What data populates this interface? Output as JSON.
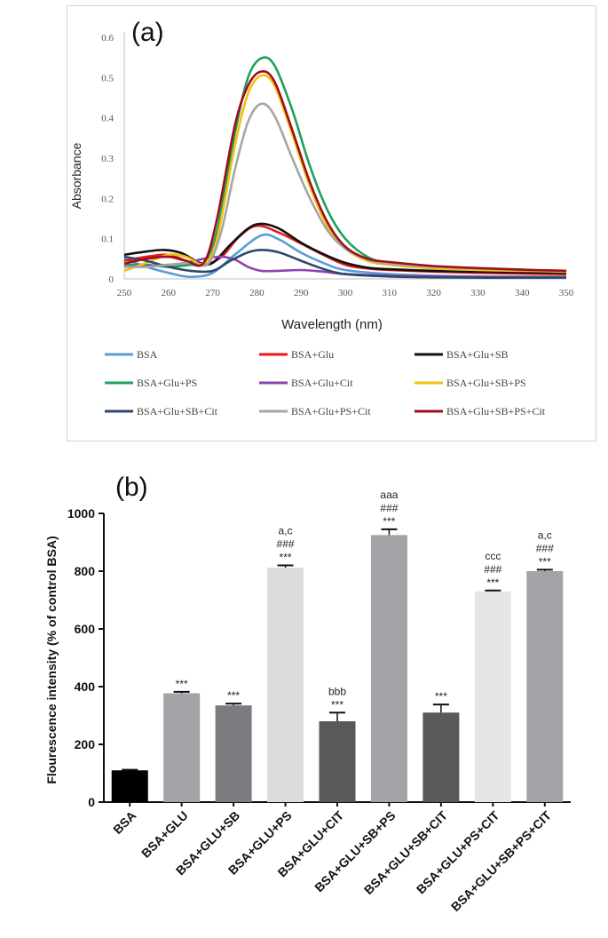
{
  "chart_data": [
    {
      "type": "line",
      "panel_label": "(a)",
      "xlabel": "Wavelength (nm)",
      "ylabel": "Absorbance",
      "xlim": [
        250,
        350
      ],
      "ylim": [
        0,
        0.6
      ],
      "x_ticks": [
        "250",
        "260",
        "270",
        "280",
        "290",
        "300",
        "310",
        "320",
        "330",
        "340",
        "350"
      ],
      "y_ticks": [
        "0",
        "0.1",
        "0.2",
        "0.3",
        "0.4",
        "0.5",
        "0.6"
      ],
      "legend_placement": "bottom",
      "series": [
        {
          "name": "BSA",
          "color": "#5b9bd5",
          "points": [
            [
              250,
              0.05
            ],
            [
              255,
              0.03
            ],
            [
              260,
              0.015
            ],
            [
              265,
              0.005
            ],
            [
              270,
              0.015
            ],
            [
              275,
              0.06
            ],
            [
              281,
              0.108
            ],
            [
              285,
              0.098
            ],
            [
              290,
              0.065
            ],
            [
              295,
              0.04
            ],
            [
              300,
              0.022
            ],
            [
              310,
              0.012
            ],
            [
              320,
              0.008
            ],
            [
              330,
              0.006
            ],
            [
              340,
              0.005
            ],
            [
              350,
              0.005
            ]
          ]
        },
        {
          "name": "BSA+Glu",
          "color": "#e31a1c",
          "points": [
            [
              250,
              0.045
            ],
            [
              255,
              0.055
            ],
            [
              260,
              0.06
            ],
            [
              264,
              0.045
            ],
            [
              268,
              0.035
            ],
            [
              272,
              0.055
            ],
            [
              276,
              0.105
            ],
            [
              280,
              0.132
            ],
            [
              285,
              0.115
            ],
            [
              290,
              0.088
            ],
            [
              295,
              0.06
            ],
            [
              300,
              0.035
            ],
            [
              305,
              0.026
            ],
            [
              310,
              0.022
            ],
            [
              320,
              0.018
            ],
            [
              330,
              0.015
            ],
            [
              340,
              0.013
            ],
            [
              350,
              0.012
            ]
          ]
        },
        {
          "name": "BSA+Glu+SB",
          "color": "#111111",
          "points": [
            [
              250,
              0.06
            ],
            [
              255,
              0.068
            ],
            [
              259,
              0.072
            ],
            [
              263,
              0.064
            ],
            [
              267,
              0.04
            ],
            [
              270,
              0.04
            ],
            [
              274,
              0.085
            ],
            [
              278,
              0.125
            ],
            [
              281,
              0.137
            ],
            [
              285,
              0.125
            ],
            [
              290,
              0.09
            ],
            [
              295,
              0.062
            ],
            [
              300,
              0.04
            ],
            [
              305,
              0.028
            ],
            [
              310,
              0.024
            ],
            [
              320,
              0.02
            ],
            [
              330,
              0.018
            ],
            [
              340,
              0.016
            ],
            [
              350,
              0.015
            ]
          ]
        },
        {
          "name": "BSA+Glu+PS",
          "color": "#1fa05a",
          "points": [
            [
              250,
              0.035
            ],
            [
              255,
              0.035
            ],
            [
              260,
              0.03
            ],
            [
              265,
              0.035
            ],
            [
              268,
              0.04
            ],
            [
              271,
              0.12
            ],
            [
              275,
              0.36
            ],
            [
              278,
              0.5
            ],
            [
              281,
              0.548
            ],
            [
              284,
              0.53
            ],
            [
              288,
              0.42
            ],
            [
              292,
              0.28
            ],
            [
              296,
              0.17
            ],
            [
              300,
              0.1
            ],
            [
              305,
              0.055
            ],
            [
              310,
              0.04
            ],
            [
              320,
              0.03
            ],
            [
              330,
              0.025
            ],
            [
              340,
              0.022
            ],
            [
              350,
              0.02
            ]
          ]
        },
        {
          "name": "BSA+Glu+Cit",
          "color": "#8e44ad",
          "points": [
            [
              250,
              0.03
            ],
            [
              255,
              0.032
            ],
            [
              260,
              0.035
            ],
            [
              264,
              0.04
            ],
            [
              268,
              0.05
            ],
            [
              272,
              0.055
            ],
            [
              275,
              0.048
            ],
            [
              278,
              0.03
            ],
            [
              281,
              0.02
            ],
            [
              285,
              0.02
            ],
            [
              290,
              0.022
            ],
            [
              295,
              0.018
            ],
            [
              300,
              0.012
            ],
            [
              310,
              0.008
            ],
            [
              320,
              0.006
            ],
            [
              330,
              0.005
            ],
            [
              340,
              0.005
            ],
            [
              350,
              0.005
            ]
          ]
        },
        {
          "name": "BSA+Glu+SB+PS",
          "color": "#f2c00f",
          "points": [
            [
              250,
              0.02
            ],
            [
              255,
              0.04
            ],
            [
              260,
              0.06
            ],
            [
              264,
              0.055
            ],
            [
              268,
              0.038
            ],
            [
              271,
              0.1
            ],
            [
              275,
              0.33
            ],
            [
              278,
              0.46
            ],
            [
              281,
              0.505
            ],
            [
              284,
              0.48
            ],
            [
              288,
              0.36
            ],
            [
              292,
              0.23
            ],
            [
              296,
              0.13
            ],
            [
              300,
              0.075
            ],
            [
              305,
              0.045
            ],
            [
              310,
              0.035
            ],
            [
              320,
              0.026
            ],
            [
              330,
              0.022
            ],
            [
              340,
              0.02
            ],
            [
              350,
              0.018
            ]
          ]
        },
        {
          "name": "BSA+Glu+SB+Cit",
          "color": "#2c4a6b",
          "points": [
            [
              250,
              0.055
            ],
            [
              255,
              0.045
            ],
            [
              260,
              0.03
            ],
            [
              265,
              0.02
            ],
            [
              270,
              0.02
            ],
            [
              274,
              0.045
            ],
            [
              278,
              0.066
            ],
            [
              281,
              0.072
            ],
            [
              285,
              0.066
            ],
            [
              290,
              0.045
            ],
            [
              295,
              0.025
            ],
            [
              300,
              0.012
            ],
            [
              310,
              0.006
            ],
            [
              320,
              0.004
            ],
            [
              330,
              0.003
            ],
            [
              340,
              0.003
            ],
            [
              350,
              0.003
            ]
          ]
        },
        {
          "name": "BSA+Glu+PS+Cit",
          "color": "#a6a6a6",
          "points": [
            [
              250,
              0.03
            ],
            [
              255,
              0.03
            ],
            [
              260,
              0.035
            ],
            [
              265,
              0.04
            ],
            [
              269,
              0.038
            ],
            [
              272,
              0.12
            ],
            [
              275,
              0.27
            ],
            [
              278,
              0.39
            ],
            [
              281,
              0.435
            ],
            [
              284,
              0.405
            ],
            [
              288,
              0.3
            ],
            [
              292,
              0.2
            ],
            [
              296,
              0.12
            ],
            [
              300,
              0.075
            ],
            [
              305,
              0.048
            ],
            [
              310,
              0.038
            ],
            [
              320,
              0.03
            ],
            [
              330,
              0.026
            ],
            [
              340,
              0.022
            ],
            [
              350,
              0.02
            ]
          ]
        },
        {
          "name": "BSA+Glu+SB+PS+Cit",
          "color": "#a00d1a",
          "points": [
            [
              250,
              0.038
            ],
            [
              255,
              0.05
            ],
            [
              260,
              0.055
            ],
            [
              264,
              0.045
            ],
            [
              268,
              0.04
            ],
            [
              271,
              0.15
            ],
            [
              275,
              0.38
            ],
            [
              278,
              0.48
            ],
            [
              281,
              0.515
            ],
            [
              284,
              0.49
            ],
            [
              288,
              0.37
            ],
            [
              292,
              0.24
            ],
            [
              296,
              0.14
            ],
            [
              300,
              0.08
            ],
            [
              305,
              0.05
            ],
            [
              310,
              0.042
            ],
            [
              320,
              0.032
            ],
            [
              330,
              0.027
            ],
            [
              340,
              0.023
            ],
            [
              350,
              0.02
            ]
          ]
        }
      ]
    },
    {
      "type": "bar",
      "panel_label": "(b)",
      "ylabel": "Flourescence intensity (% of control BSA)",
      "xlabel": "",
      "ylim": [
        0,
        1000
      ],
      "y_ticks": [
        "0",
        "200",
        "400",
        "600",
        "800",
        "1000"
      ],
      "categories": [
        "BSA",
        "BSA+GLU",
        "BSA+GLU+SB",
        "BSA+GLU+PS",
        "BSA+GLU+CIT",
        "BSA+GLU+SB+PS",
        "BSA+GLU+SB+CIT",
        "BSA+GLU+PS+CIT",
        "BSA+GLU+SB+PS+CIT"
      ],
      "values": [
        110,
        377,
        335,
        812,
        280,
        925,
        310,
        730,
        800
      ],
      "errors": [
        2,
        5,
        6,
        8,
        30,
        20,
        28,
        3,
        5
      ],
      "colors": [
        "#000000",
        "#a3a3a8",
        "#7b7b80",
        "#dcdcdc",
        "#59595c",
        "#a3a3a8",
        "#59595c",
        "#e6e6e6",
        "#a3a3a8"
      ],
      "annotations": [
        [],
        [
          "***"
        ],
        [
          "***"
        ],
        [
          "a,c",
          "###",
          "***"
        ],
        [
          "bbb",
          "***"
        ],
        [
          "aaa",
          "###",
          "***"
        ],
        [
          "***"
        ],
        [
          "ccc",
          "###",
          "***"
        ],
        [
          "a,c",
          "###",
          "***"
        ]
      ]
    }
  ]
}
